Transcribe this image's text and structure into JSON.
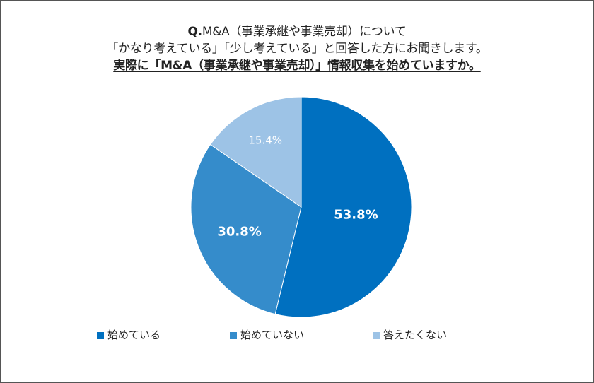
{
  "title": {
    "line1_prefix": "Q.",
    "line1": "M&A（事業承継や事業売却）について",
    "line2": "「かなり考えている」「少し考えている」と回答した方にお聞きします。",
    "line3": "実際に「M&A（事業承継や事業売却）」情報収集を始めていますか。"
  },
  "chart_data": {
    "type": "pie",
    "start_angle": "12 o'clock, clockwise",
    "legend_position": "bottom",
    "slices": [
      {
        "name": "始めている",
        "value": 53.8,
        "label": "53.8%",
        "color": "#0070C0",
        "label_color": "#FFFFFF"
      },
      {
        "name": "始めていない",
        "value": 30.8,
        "label": "30.8%",
        "color": "#358CCB",
        "label_color": "#FFFFFF"
      },
      {
        "name": "答えたくない",
        "value": 15.4,
        "label": "15.4%",
        "color": "#9DC3E6",
        "label_color": "#FFFFFF"
      }
    ]
  }
}
